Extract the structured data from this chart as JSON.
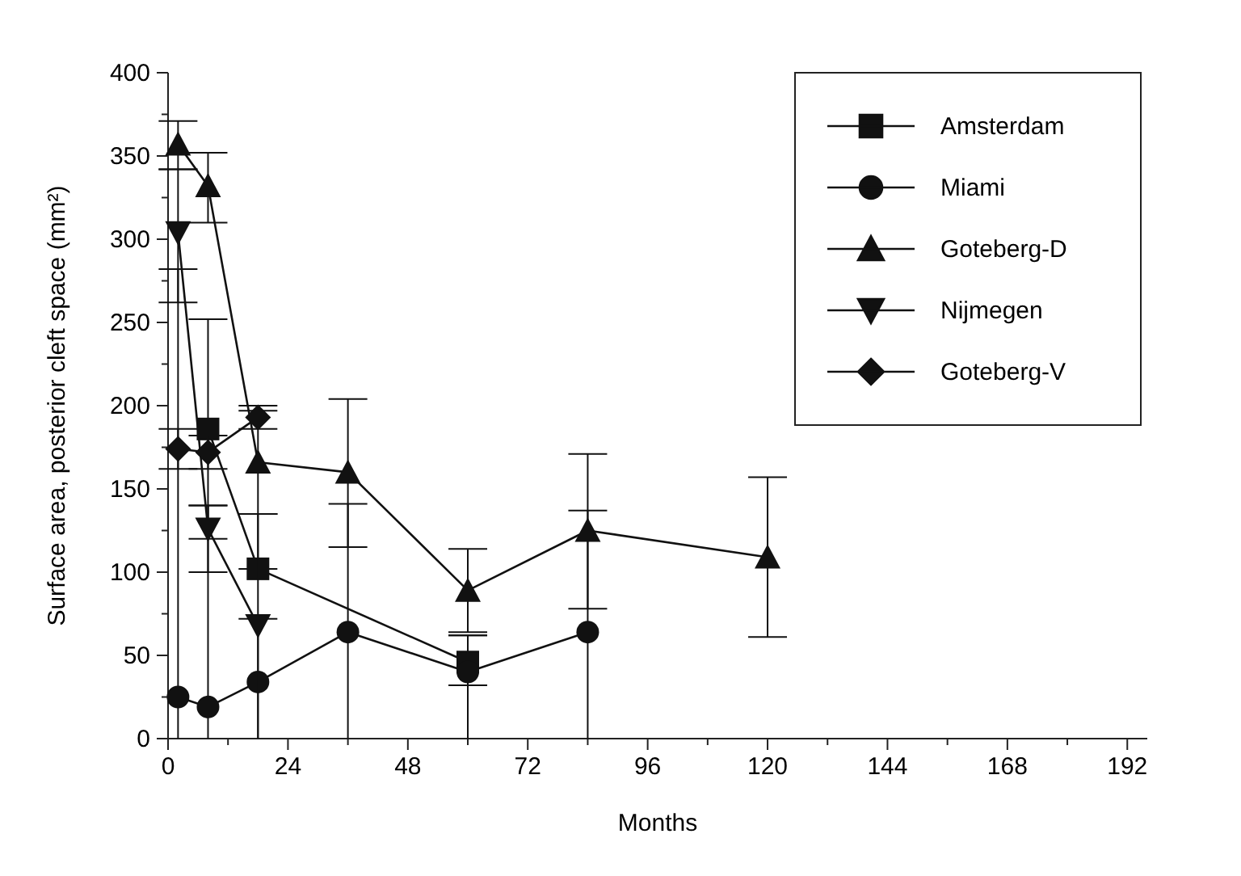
{
  "chart_data": {
    "type": "line",
    "xlabel": "Months",
    "ylabel": "Surface area, posterior cleft space (mm²)",
    "xlim": [
      0,
      196
    ],
    "xticks": [
      0,
      24,
      48,
      72,
      96,
      120,
      144,
      168,
      192
    ],
    "ylim": [
      0,
      400
    ],
    "yticks": [
      0,
      50,
      100,
      150,
      200,
      250,
      300,
      350,
      400
    ],
    "legend": "top right",
    "grid": false,
    "line_style": "solid",
    "series": [
      {
        "name": "Amsterdam",
        "color": "#111111",
        "marker": "square",
        "x": [
          8,
          18,
          60
        ],
        "values": [
          186,
          102,
          46
        ],
        "errors": [
          [
            120,
            252
          ],
          [
            102,
            135
          ],
          [
            32,
            62
          ]
        ]
      },
      {
        "name": "Miami",
        "color": "#111111",
        "marker": "circle",
        "x": [
          2,
          8,
          18,
          36,
          60,
          84
        ],
        "values": [
          25,
          19,
          34,
          64,
          40,
          64
        ],
        "errors": [
          [
            0,
            282
          ],
          [
            0,
            140
          ],
          [
            0,
            72
          ],
          [
            0,
            141
          ],
          [
            0,
            62
          ],
          [
            0,
            137
          ]
        ]
      },
      {
        "name": "Goteberg-D",
        "color": "#111111",
        "marker": "triangle",
        "x": [
          2,
          8,
          18,
          36,
          60,
          84,
          120
        ],
        "values": [
          357,
          332,
          166,
          160,
          89,
          125,
          109
        ],
        "errors": [
          [
            342,
            371
          ],
          [
            310,
            352
          ],
          [
            135,
            197
          ],
          [
            115,
            204
          ],
          [
            64,
            114
          ],
          [
            78,
            171
          ],
          [
            61,
            157
          ]
        ]
      },
      {
        "name": "Nijmegen",
        "color": "#111111",
        "marker": "triangle-down",
        "x": [
          2,
          8,
          18
        ],
        "values": [
          304,
          126,
          68
        ],
        "errors": [
          [
            262,
            342
          ],
          [
            100,
            140
          ],
          [
            0,
            135
          ]
        ]
      },
      {
        "name": "Goteberg-V",
        "color": "#111111",
        "marker": "diamond",
        "x": [
          2,
          8,
          18
        ],
        "values": [
          174,
          172,
          193
        ],
        "errors": [
          [
            162,
            186
          ],
          [
            162,
            182
          ],
          [
            186,
            200
          ]
        ]
      }
    ]
  }
}
